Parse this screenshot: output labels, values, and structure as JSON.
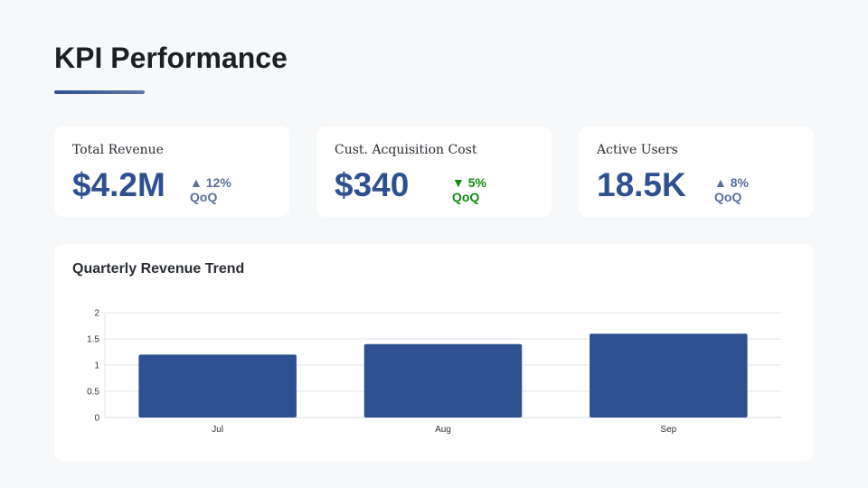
{
  "header": {
    "title": "KPI Performance"
  },
  "kpis": [
    {
      "label": "Total Revenue",
      "value": "$4.2M",
      "delta": "▲ 12%",
      "period": "QoQ",
      "color": "#5a6f9a"
    },
    {
      "label": "Cust. Acquisition Cost",
      "value": "$340",
      "delta": "▼ 5%",
      "period": "QoQ",
      "color": "#108a10"
    },
    {
      "label": "Active Users",
      "value": "18.5K",
      "delta": "▲ 8%",
      "period": "QoQ",
      "color": "#5a6f9a"
    }
  ],
  "chart_data": {
    "type": "bar",
    "title": "Quarterly Revenue Trend",
    "categories": [
      "Jul",
      "Aug",
      "Sep"
    ],
    "values": [
      1.2,
      1.4,
      1.6
    ],
    "ylim": [
      0,
      2
    ],
    "yticks": [
      "0",
      "0.5",
      "1",
      "1.5",
      "2"
    ],
    "grid": true,
    "bar_color": "#2e5090"
  }
}
